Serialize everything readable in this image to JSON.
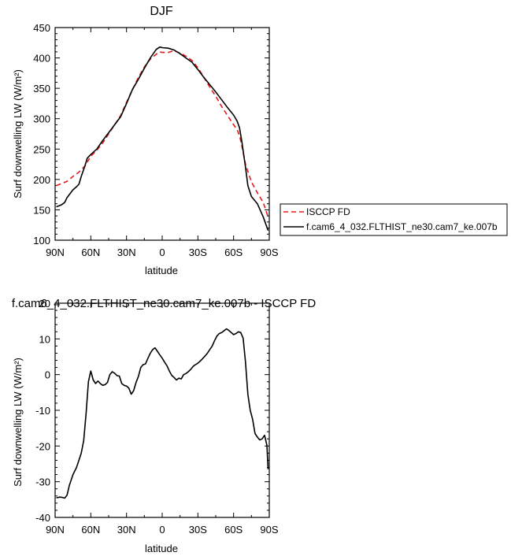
{
  "chart_data": [
    {
      "type": "line",
      "title": "DJF",
      "xlabel": "latitude",
      "ylabel": "Surf downwelling LW (W/m²)",
      "xlim": [
        -90,
        90
      ],
      "ylim": [
        100,
        450
      ],
      "xticks": [
        -90,
        -60,
        -30,
        0,
        30,
        60,
        90
      ],
      "xtick_labels": [
        "90N",
        "60N",
        "30N",
        "0",
        "30S",
        "60S",
        "90S"
      ],
      "yticks": [
        100,
        150,
        200,
        250,
        300,
        350,
        400,
        450
      ],
      "ytick_labels": [
        "100",
        "150",
        "200",
        "250",
        "300",
        "350",
        "400",
        "450"
      ],
      "legend_position": "right",
      "series": [
        {
          "name": "ISCCP FD",
          "color": "#e8191c",
          "dash": "dashed",
          "x": [
            -89,
            -85,
            -80,
            -75,
            -70,
            -65,
            -60,
            -55,
            -50,
            -45,
            -40,
            -35,
            -30,
            -25,
            -20,
            -15,
            -10,
            -5,
            -2,
            0,
            5,
            10,
            15,
            20,
            25,
            30,
            35,
            40,
            45,
            50,
            55,
            60,
            63,
            65,
            67,
            70,
            75,
            80,
            85,
            89
          ],
          "y": [
            190,
            193,
            197,
            205,
            212,
            222,
            238,
            248,
            260,
            275,
            290,
            305,
            327,
            348,
            368,
            385,
            398,
            406,
            410,
            409,
            409,
            412,
            408,
            403,
            396,
            384,
            368,
            352,
            337,
            320,
            305,
            290,
            282,
            272,
            255,
            225,
            196,
            178,
            162,
            138
          ]
        },
        {
          "name": "f.cam6_4_032.FLTHIST_ne30.cam7_ke.007b",
          "color": "#000000",
          "dash": "solid",
          "x": [
            -89,
            -85,
            -82,
            -80,
            -75,
            -72,
            -70,
            -68,
            -65,
            -63,
            -60,
            -55,
            -50,
            -45,
            -40,
            -35,
            -30,
            -25,
            -20,
            -15,
            -10,
            -5,
            -2,
            0,
            5,
            10,
            15,
            20,
            25,
            30,
            35,
            40,
            45,
            50,
            55,
            60,
            63,
            65,
            67,
            70,
            72,
            75,
            80,
            85,
            89
          ],
          "y": [
            155,
            158,
            162,
            170,
            183,
            188,
            192,
            205,
            222,
            235,
            241,
            250,
            264,
            277,
            290,
            303,
            325,
            348,
            365,
            383,
            400,
            414,
            418,
            417,
            416,
            413,
            407,
            400,
            393,
            381,
            368,
            356,
            344,
            331,
            318,
            306,
            296,
            285,
            262,
            220,
            190,
            172,
            160,
            138,
            116
          ]
        }
      ]
    },
    {
      "type": "line",
      "title": "f.cam6_4_032.FLTHIST_ne30.cam7_ke.007b - ISCCP FD",
      "xlabel": "latitude",
      "ylabel": "Surf downwelling LW (W/m²)",
      "xlim": [
        -90,
        90
      ],
      "ylim": [
        -40,
        20
      ],
      "xticks": [
        -90,
        -60,
        -30,
        0,
        30,
        60,
        90
      ],
      "xtick_labels": [
        "90N",
        "60N",
        "30N",
        "0",
        "30S",
        "60S",
        "90S"
      ],
      "yticks": [
        -40,
        -30,
        -20,
        -10,
        0,
        10,
        20
      ],
      "ytick_labels": [
        "-40",
        "-30",
        "-20",
        "-10",
        "0",
        "10",
        "20"
      ],
      "series": [
        {
          "color": "#000000",
          "dash": "solid",
          "x": [
            -89,
            -86,
            -84,
            -82,
            -80,
            -78,
            -75,
            -72,
            -70,
            -68,
            -66,
            -64,
            -62,
            -60,
            -58,
            -56,
            -54,
            -52,
            -50,
            -48,
            -46,
            -44,
            -42,
            -40,
            -38,
            -36,
            -34,
            -32,
            -30,
            -28,
            -26,
            -24,
            -22,
            -20,
            -18,
            -16,
            -14,
            -12,
            -10,
            -8,
            -6,
            -4,
            -2,
            0,
            2,
            4,
            6,
            8,
            10,
            12,
            14,
            16,
            18,
            20,
            22,
            24,
            26,
            28,
            30,
            32,
            34,
            36,
            38,
            40,
            42,
            44,
            46,
            48,
            50,
            52,
            54,
            56,
            58,
            60,
            62,
            64,
            66,
            68,
            70,
            72,
            74,
            76,
            78,
            80,
            82,
            84,
            86,
            88,
            89
          ],
          "y": [
            -34.5,
            -34.3,
            -34.4,
            -34.6,
            -33.8,
            -31.0,
            -28.0,
            -26.0,
            -24.0,
            -22.0,
            -18.5,
            -11.0,
            -2.0,
            1.0,
            -1.5,
            -2.5,
            -1.8,
            -2.5,
            -3.0,
            -2.8,
            -2.2,
            0.0,
            0.8,
            0.4,
            -0.3,
            -0.4,
            -2.5,
            -3.0,
            -3.2,
            -3.8,
            -5.5,
            -4.5,
            -2.2,
            -0.5,
            2.0,
            2.8,
            3.0,
            4.6,
            6.0,
            7.0,
            7.5,
            6.5,
            5.5,
            4.6,
            3.5,
            2.5,
            1.0,
            -0.2,
            -0.8,
            -1.5,
            -1.0,
            -1.2,
            0.0,
            0.3,
            0.8,
            1.5,
            2.3,
            2.8,
            3.2,
            3.8,
            4.5,
            5.2,
            6.0,
            7.0,
            8.0,
            9.5,
            10.8,
            11.5,
            11.8,
            12.3,
            12.8,
            12.4,
            11.8,
            11.2,
            11.5,
            12.0,
            11.8,
            10.2,
            3.5,
            -5.5,
            -10.0,
            -12.5,
            -16.5,
            -17.5,
            -18.3,
            -18.0,
            -17.0,
            -19.8,
            -26.5
          ]
        }
      ]
    }
  ]
}
